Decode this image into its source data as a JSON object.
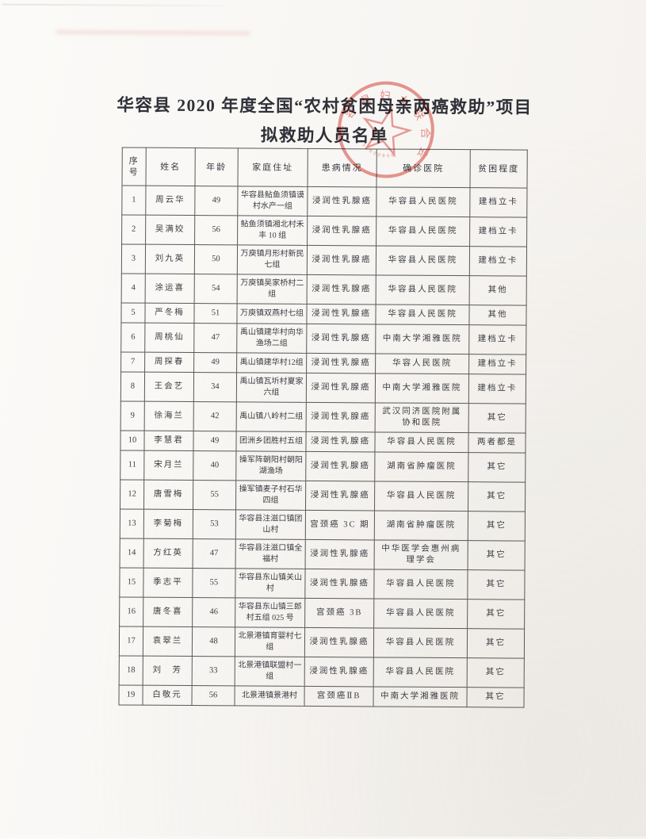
{
  "page": {
    "title_line1": "华容县 2020 年度全国“农村贫困母亲两癌救助”项目",
    "title_line2": "拟救助人员名单"
  },
  "seal": {
    "arc_text": "华容县妇女联合会",
    "serial": "430600906",
    "color": "#d9685f"
  },
  "table": {
    "headers": [
      "序号",
      "姓名",
      "年龄",
      "家庭住址",
      "患病情况",
      "确诊医院",
      "贫困程度"
    ],
    "rows": [
      {
        "no": "1",
        "name": "周云华",
        "age": "49",
        "address": "华容县鲇鱼须镇谟村水产一组",
        "illness": "浸润性乳腺癌",
        "hospital": "华容县人民医院",
        "poverty": "建档立卡"
      },
      {
        "no": "2",
        "name": "吴满姣",
        "age": "56",
        "address": "鲇鱼须镇湘北村禾丰 10 组",
        "illness": "浸润性乳腺癌",
        "hospital": "华容县人民医院",
        "poverty": "建档立卡"
      },
      {
        "no": "3",
        "name": "刘九英",
        "age": "50",
        "address": "万庾镇月形村新民七组",
        "illness": "浸润性乳腺癌",
        "hospital": "华容县人民医院",
        "poverty": "建档立卡"
      },
      {
        "no": "4",
        "name": "涂运喜",
        "age": "54",
        "address": "万庾镇吴家桥村二组",
        "illness": "浸润性乳腺癌",
        "hospital": "华容县人民医院",
        "poverty": "其他"
      },
      {
        "no": "5",
        "name": "严冬梅",
        "age": "51",
        "address": "万庾镇双燕村七组",
        "illness": "浸润性乳腺癌",
        "hospital": "华容县人民医院",
        "poverty": "其他"
      },
      {
        "no": "6",
        "name": "周桃仙",
        "age": "47",
        "address": "禹山镇建华村向华渔场二组",
        "illness": "浸润性乳腺癌",
        "hospital": "中南大学湘雅医院",
        "poverty": "建档立卡"
      },
      {
        "no": "7",
        "name": "周探春",
        "age": "49",
        "address": "禹山镇建华村12组",
        "illness": "浸润性乳腺癌",
        "hospital": "华容人民医院",
        "poverty": "建档立卡"
      },
      {
        "no": "8",
        "name": "王会艺",
        "age": "34",
        "address": "禹山镇瓦圻村夏家六组",
        "illness": "浸润性乳腺癌",
        "hospital": "中南大学湘雅医院",
        "poverty": "建档立卡"
      },
      {
        "no": "9",
        "name": "徐海兰",
        "age": "42",
        "address": "禹山镇八岭村二组",
        "illness": "浸润性乳腺癌",
        "hospital": "武汉同济医院附属协和医院",
        "poverty": "其它"
      },
      {
        "no": "10",
        "name": "李慧君",
        "age": "49",
        "address": "团洲乡团胜村五组",
        "illness": "浸润性乳腺癌",
        "hospital": "华容县人民医院",
        "poverty": "两者都是"
      },
      {
        "no": "11",
        "name": "宋月兰",
        "age": "40",
        "address": "操军阵朝阳村朝阳湖渔场",
        "illness": "浸润性乳腺癌",
        "hospital": "湖南省肿瘤医院",
        "poverty": "其它"
      },
      {
        "no": "12",
        "name": "唐雪梅",
        "age": "55",
        "address": "操军镇麦子村石华四组",
        "illness": "浸润性乳腺癌",
        "hospital": "华容县人民医院",
        "poverty": "其它"
      },
      {
        "no": "13",
        "name": "李菊梅",
        "age": "53",
        "address": "华容县注滋口镇团山村",
        "illness": "宫颈癌 3C 期",
        "hospital": "湖南省肿瘤医院",
        "poverty": "其它"
      },
      {
        "no": "14",
        "name": "方红英",
        "age": "47",
        "address": "华容县注滋口镇全福村",
        "illness": "浸润性乳腺癌",
        "hospital": "中华医学会惠州病理学会",
        "poverty": "其它"
      },
      {
        "no": "15",
        "name": "季志平",
        "age": "55",
        "address": "华容县东山镇关山村",
        "illness": "浸润性乳腺癌",
        "hospital": "华容县人民医院",
        "poverty": "其它"
      },
      {
        "no": "16",
        "name": "唐冬喜",
        "age": "46",
        "address": "华容县东山镇三郎村五组 025 号",
        "illness": "宫颈癌 3B",
        "hospital": "华容县人民医院",
        "poverty": "其它"
      },
      {
        "no": "17",
        "name": "袁翠兰",
        "age": "48",
        "address": "北景港镇育婴村七组",
        "illness": "浸润性乳腺癌",
        "hospital": "华容县人民医院",
        "poverty": "其它"
      },
      {
        "no": "18",
        "name": "刘　芳",
        "age": "33",
        "address": "北景港镇联盟村一组",
        "illness": "浸润性乳腺癌",
        "hospital": "华容县人民医院",
        "poverty": "其它"
      },
      {
        "no": "19",
        "name": "白敬元",
        "age": "56",
        "address": "北景港镇景港村",
        "illness": "宫颈癌ⅡB",
        "hospital": "中南大学湘雅医院",
        "poverty": "其它"
      }
    ]
  }
}
